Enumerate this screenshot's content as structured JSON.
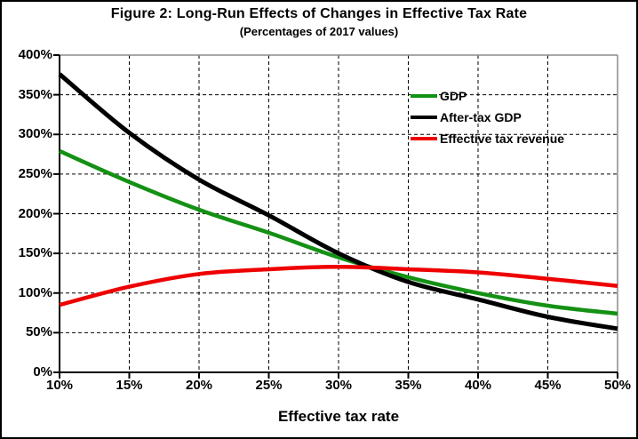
{
  "chart_data": {
    "type": "line",
    "title": "Figure 2: Long-Run Effects of Changes in Effective Tax Rate",
    "subtitle": "(Percentages of 2017 values)",
    "xlabel": "Effective tax rate",
    "ylabel": "",
    "x": [
      10,
      15,
      20,
      25,
      30,
      35,
      40,
      45,
      50
    ],
    "x_tick_labels": [
      "10%",
      "15%",
      "20%",
      "25%",
      "30%",
      "35%",
      "40%",
      "45%",
      "50%"
    ],
    "y_ticks": [
      0,
      50,
      100,
      150,
      200,
      250,
      300,
      350,
      400
    ],
    "y_tick_labels": [
      "0%",
      "50%",
      "100%",
      "150%",
      "200%",
      "250%",
      "300%",
      "350%",
      "400%"
    ],
    "xlim": [
      10,
      50
    ],
    "ylim": [
      0,
      400
    ],
    "grid": true,
    "gridline_style": "dashed-black",
    "legend_position": "upper right inside plot",
    "frame_top_right_color": "#8c8c8c",
    "axis_color": "#000000",
    "series": [
      {
        "name": "GDP",
        "color": "#149114",
        "values": [
          279,
          240,
          205,
          176,
          145,
          120,
          100,
          84,
          74
        ]
      },
      {
        "name": "After-tax GDP",
        "color": "#000000",
        "values": [
          376,
          302,
          243,
          198,
          150,
          114,
          92,
          70,
          55
        ]
      },
      {
        "name": "Effective tax revenue",
        "color": "#ee0000",
        "values": [
          85,
          108,
          124,
          130,
          133,
          130,
          126,
          118,
          109
        ]
      }
    ]
  }
}
